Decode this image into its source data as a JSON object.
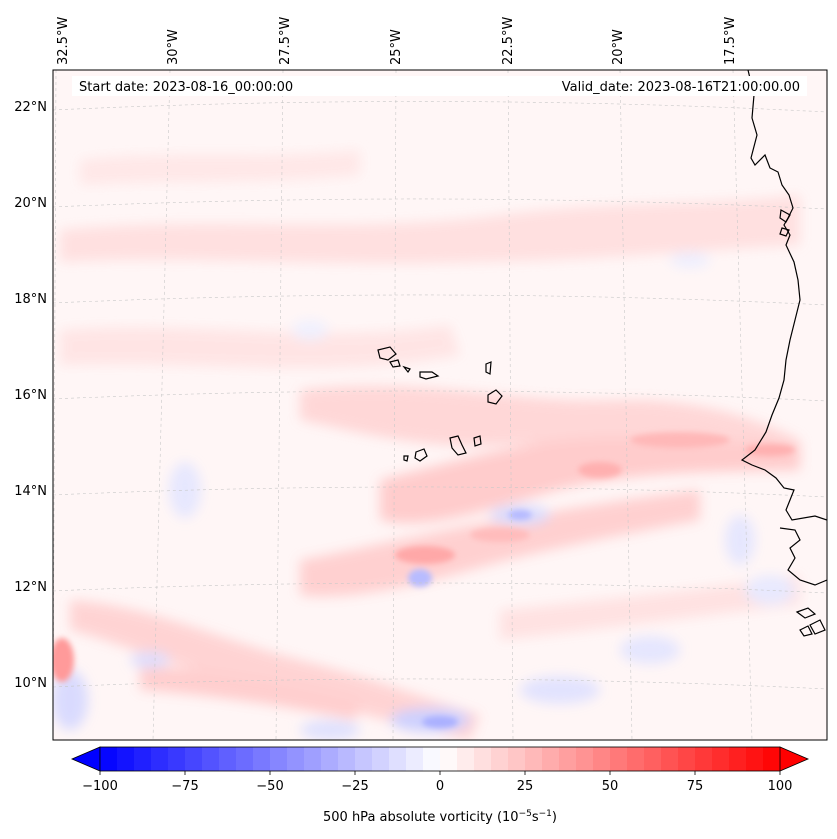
{
  "header": {
    "start_date": "Start date: 2023-08-16_00:00:00",
    "valid_date": "Valid_date: 2023-08-16T21:00:00.00"
  },
  "axes": {
    "lon_ticks": [
      "32.5°W",
      "30°W",
      "27.5°W",
      "25°W",
      "22.5°W",
      "20°W",
      "17.5°W"
    ],
    "lat_ticks": [
      "22°N",
      "20°N",
      "18°N",
      "16°N",
      "14°N",
      "12°N",
      "10°N"
    ]
  },
  "colorbar": {
    "ticks": [
      "−100",
      "−75",
      "−50",
      "−25",
      "0",
      "25",
      "50",
      "75",
      "100"
    ],
    "min": -100,
    "max": 100,
    "levels": 40,
    "low_color": "#0000ff",
    "mid_color": "#ffffff",
    "high_color": "#ff0000",
    "label_main": "500 hPa absolute vorticity (10",
    "label_exp1": "−5",
    "label_mid": "s",
    "label_exp2": "−1",
    "label_end": ")"
  },
  "colors": {
    "background_field": "#fff5f5",
    "coast": "#000000",
    "grid": "#c8c8c8"
  }
}
